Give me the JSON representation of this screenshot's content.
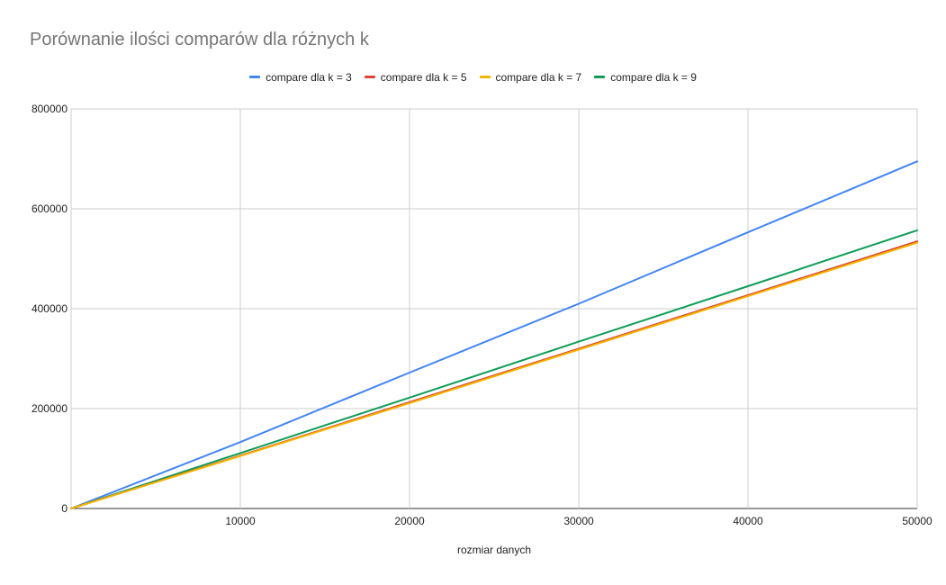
{
  "chart_data": {
    "type": "line",
    "title": "Porównanie ilości comparów dla różnych k",
    "xlabel": "rozmiar danych",
    "ylabel": "",
    "xlim": [
      0,
      50000
    ],
    "ylim": [
      0,
      800000
    ],
    "x_ticks": [
      10000,
      20000,
      30000,
      40000,
      50000
    ],
    "y_ticks": [
      0,
      200000,
      400000,
      600000,
      800000
    ],
    "grid": true,
    "legend": "top-center",
    "series": [
      {
        "name": "compare dla k = 3",
        "color": "#4285f4",
        "x": [
          0,
          10000,
          20000,
          30000,
          40000,
          50000
        ],
        "y": [
          0,
          133000,
          272000,
          410000,
          553000,
          695000
        ]
      },
      {
        "name": "compare dla k = 5",
        "color": "#db4437",
        "x": [
          0,
          10000,
          20000,
          30000,
          40000,
          50000
        ],
        "y": [
          0,
          106000,
          213000,
          320000,
          427000,
          535000
        ]
      },
      {
        "name": "compare dla k = 7",
        "color": "#f4b400",
        "x": [
          0,
          10000,
          20000,
          30000,
          40000,
          50000
        ],
        "y": [
          0,
          105000,
          211000,
          318000,
          425000,
          532000
        ]
      },
      {
        "name": "compare dla k = 9",
        "color": "#0f9d58",
        "x": [
          0,
          10000,
          20000,
          30000,
          40000,
          50000
        ],
        "y": [
          0,
          111000,
          222000,
          334000,
          445000,
          557000
        ]
      }
    ]
  }
}
